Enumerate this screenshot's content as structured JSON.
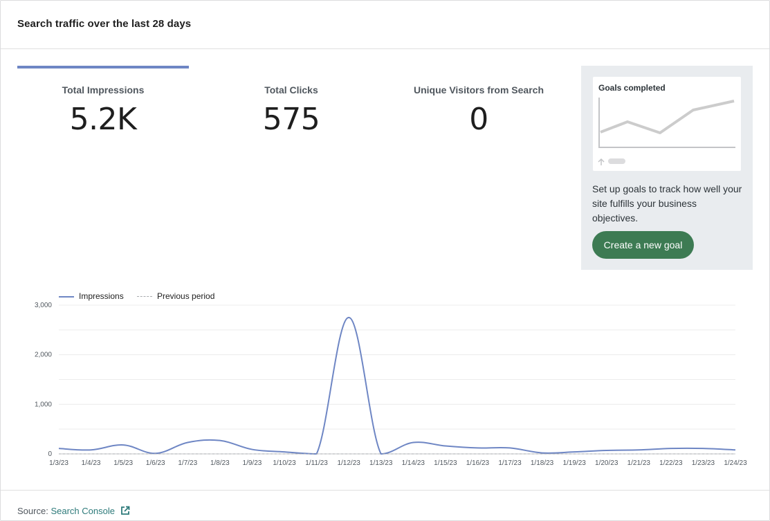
{
  "header": {
    "title": "Search traffic over the last 28 days"
  },
  "metrics": [
    {
      "label": "Total Impressions",
      "value": "5.2K"
    },
    {
      "label": "Total Clicks",
      "value": "575"
    },
    {
      "label": "Unique Visitors from Search",
      "value": "0"
    }
  ],
  "goals": {
    "mini_title": "Goals completed",
    "description": "Set up goals to track how well your site fulfills your business objectives.",
    "button_label": "Create a new goal"
  },
  "footer": {
    "source_label": "Source:",
    "source_link": "Search Console",
    "icon": "external-link-icon"
  },
  "colors": {
    "accent": "#6e86c4",
    "button": "#3d7b53",
    "link": "#2d7a7a"
  },
  "chart_data": {
    "type": "line",
    "x": [
      "1/3/23",
      "1/4/23",
      "1/5/23",
      "1/6/23",
      "1/7/23",
      "1/8/23",
      "1/9/23",
      "1/10/23",
      "1/11/23",
      "1/12/23",
      "1/13/23",
      "1/14/23",
      "1/15/23",
      "1/16/23",
      "1/17/23",
      "1/18/23",
      "1/19/23",
      "1/20/23",
      "1/21/23",
      "1/22/23",
      "1/23/23",
      "1/24/23"
    ],
    "series": [
      {
        "name": "Impressions",
        "values": [
          110,
          80,
          180,
          10,
          230,
          270,
          90,
          40,
          0,
          2750,
          0,
          230,
          160,
          120,
          120,
          20,
          40,
          70,
          80,
          110,
          110,
          80
        ],
        "color": "#6e86c4"
      },
      {
        "name": "Previous period",
        "values": [
          0,
          0,
          0,
          0,
          0,
          0,
          0,
          0,
          0,
          0,
          0,
          0,
          0,
          0,
          0,
          0,
          0,
          0,
          0,
          0,
          0,
          0
        ],
        "color": "#a7aaad",
        "dashed": true
      }
    ],
    "yticks": [
      "0",
      "1,000",
      "2,000",
      "3,000"
    ],
    "ylim": [
      0,
      3000
    ],
    "grid": true,
    "legend": "top-left"
  }
}
